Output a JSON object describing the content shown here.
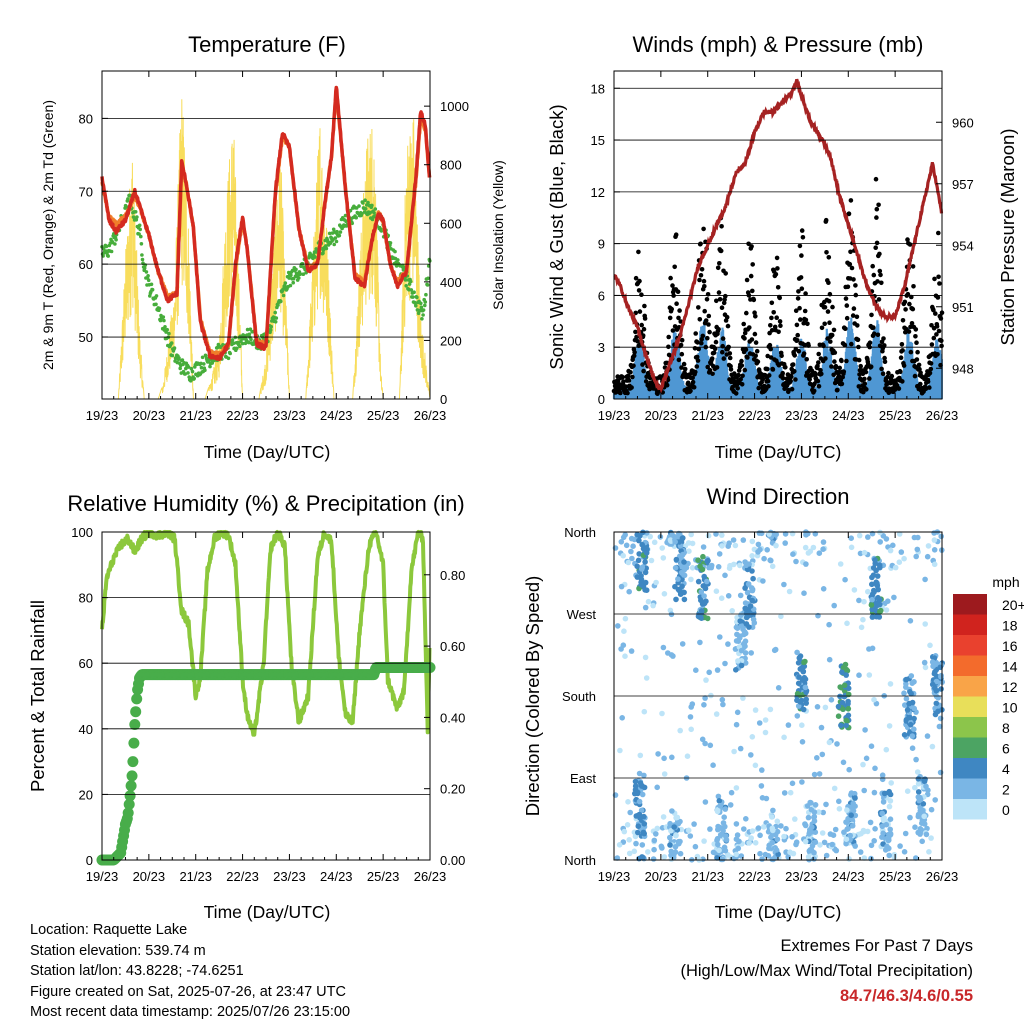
{
  "x_ticks": [
    "19/23",
    "20/23",
    "21/23",
    "22/23",
    "23/23",
    "24/23",
    "25/23",
    "26/23"
  ],
  "colors": {
    "temp_2m": "#d42a20",
    "temp_9m": "#f07d2a",
    "dewpoint": "#46ad3b",
    "solar": "#f8dd5c",
    "gust": "#000000",
    "wind": "#4f97d3",
    "pressure": "#a52222",
    "rh": "#8cc83c",
    "precip": "#48ad4a",
    "extremes": "#c8282a"
  },
  "chart_data": [
    {
      "type": "line",
      "title": "Temperature (F)",
      "xlabel": "Time (Day/UTC)",
      "ylabel": "2m & 9m T (Red, Orange) & 2m Td (Green)",
      "y2label": "Solar Insolation (Yellow)",
      "ylim": [
        41.5,
        86.5
      ],
      "y2lim": [
        0,
        1120
      ],
      "yticks": [
        50,
        60,
        70,
        80
      ],
      "y2ticks": [
        0,
        200,
        400,
        600,
        800,
        1000
      ],
      "grid": "horizontal",
      "series": [
        {
          "name": "2m T",
          "axis": "left",
          "x": [
            19.0,
            19.15,
            19.3,
            19.5,
            19.7,
            19.85,
            20.0,
            20.2,
            20.4,
            20.6,
            20.7,
            20.8,
            20.95,
            21.1,
            21.3,
            21.5,
            21.7,
            21.85,
            22.0,
            22.1,
            22.3,
            22.5,
            22.7,
            22.85,
            23.0,
            23.2,
            23.4,
            23.6,
            23.75,
            23.9,
            24.0,
            24.2,
            24.4,
            24.6,
            24.75,
            24.9,
            25.0,
            25.15,
            25.3,
            25.5,
            25.7,
            25.8,
            25.9,
            26.0
          ],
          "y": [
            72,
            66,
            64.5,
            66,
            70,
            67,
            64,
            59,
            55,
            56,
            74,
            71,
            65,
            52,
            47.5,
            47,
            49,
            60,
            66.5,
            62,
            49,
            48.5,
            70,
            78,
            76,
            65,
            59,
            60,
            68,
            75,
            84.5,
            70,
            58,
            57,
            63,
            67,
            66,
            60,
            57,
            59,
            72,
            81,
            79,
            71
          ]
        },
        {
          "name": "9m T",
          "axis": "left",
          "x": [
            19.0,
            19.15,
            19.3,
            19.5,
            19.7,
            19.85,
            20.0,
            20.2,
            20.4,
            20.6,
            20.7,
            20.8,
            20.95,
            21.1,
            21.3,
            21.5,
            21.7,
            21.85,
            22.0,
            22.1,
            22.3,
            22.5,
            22.7,
            22.85,
            23.0,
            23.2,
            23.4,
            23.6,
            23.75,
            23.9,
            24.0,
            24.2,
            24.4,
            24.6,
            24.75,
            24.9,
            25.0,
            25.15,
            25.3,
            25.5,
            25.7,
            25.8,
            25.9,
            26.0
          ],
          "y": [
            71.5,
            66.5,
            65.5,
            66.5,
            69.5,
            67,
            64,
            59,
            55.5,
            56,
            73,
            71,
            65,
            52.5,
            48,
            47.5,
            49,
            59.5,
            66,
            62,
            49.5,
            49,
            69.5,
            77.5,
            76,
            65,
            59.5,
            60,
            68,
            75,
            84,
            70,
            58.5,
            57.5,
            63,
            67,
            66,
            60,
            57.5,
            59,
            71.5,
            80,
            78.5,
            71
          ]
        },
        {
          "name": "2m Td",
          "axis": "left",
          "x": [
            19.0,
            19.15,
            19.3,
            19.5,
            19.6,
            19.8,
            19.9,
            20.0,
            20.15,
            20.3,
            20.5,
            20.7,
            20.9,
            21.1,
            21.3,
            21.5,
            21.7,
            21.85,
            22.0,
            22.2,
            22.4,
            22.6,
            22.8,
            23.0,
            23.2,
            23.4,
            23.6,
            23.8,
            24.0,
            24.2,
            24.4,
            24.6,
            24.8,
            25.0,
            25.15,
            25.3,
            25.5,
            25.7,
            25.85,
            26.0
          ],
          "y": [
            61.5,
            62,
            64,
            67,
            69,
            64.5,
            60,
            57,
            55,
            52,
            48,
            46,
            45,
            46,
            47,
            48,
            48,
            49,
            50,
            50,
            49,
            51,
            55,
            58,
            59,
            60,
            62,
            63,
            64,
            66,
            67,
            68,
            67,
            65,
            62,
            60,
            58,
            55,
            53,
            61
          ]
        },
        {
          "name": "Solar",
          "axis": "right",
          "x": [
            19.0,
            19.2,
            19.35,
            19.5,
            19.65,
            19.8,
            19.9,
            20.0,
            20.2,
            20.3,
            20.4,
            20.55,
            20.7,
            20.85,
            20.95,
            21.0,
            21.2,
            21.35,
            21.5,
            21.65,
            21.8,
            21.95,
            22.0,
            22.2,
            22.35,
            22.5,
            22.65,
            22.8,
            22.95,
            23.0,
            23.2,
            23.35,
            23.5,
            23.65,
            23.8,
            23.95,
            24.0,
            24.2,
            24.35,
            24.5,
            24.65,
            24.8,
            24.95,
            25.0,
            25.2,
            25.35,
            25.5,
            25.65,
            25.8,
            25.9,
            26.0
          ],
          "y": [
            0,
            0,
            0,
            500,
            900,
            250,
            0,
            0,
            0,
            50,
            180,
            400,
            1100,
            600,
            0,
            0,
            0,
            80,
            200,
            700,
            1000,
            300,
            0,
            0,
            0,
            150,
            500,
            900,
            250,
            0,
            0,
            0,
            500,
            1000,
            600,
            0,
            0,
            0,
            0,
            500,
            900,
            1000,
            100,
            0,
            0,
            0,
            900,
            1000,
            300,
            150,
            0
          ]
        }
      ]
    },
    {
      "type": "scatter",
      "title": "Winds (mph) & Pressure (mb)",
      "xlabel": "Time (Day/UTC)",
      "ylabel": "Sonic Wind & Gust (Blue, Black)",
      "y2label": "Station Pressure (Maroon)",
      "ylim": [
        0,
        19
      ],
      "y2lim": [
        946.5,
        962.5
      ],
      "yticks": [
        0,
        3,
        6,
        9,
        12,
        15,
        18
      ],
      "y2ticks": [
        948,
        951,
        954,
        957,
        960
      ],
      "grid": "horizontal",
      "series": [
        {
          "name": "Gust",
          "axis": "left",
          "peak_x": [
            19.55,
            20.3,
            20.9,
            21.3,
            21.9,
            22.45,
            23.0,
            23.55,
            24.05,
            24.6,
            25.3,
            25.9
          ],
          "peak_y": [
            9,
            10,
            11,
            10,
            9,
            8,
            9,
            10,
            11,
            12,
            10,
            9
          ],
          "base": 1.2
        },
        {
          "name": "Wind",
          "axis": "left",
          "peak_x": [
            19.55,
            20.3,
            20.9,
            21.3,
            21.9,
            22.45,
            23.0,
            23.55,
            24.05,
            24.6,
            25.3,
            25.9
          ],
          "peak_y": [
            3,
            3.5,
            4,
            3.5,
            3,
            3,
            3,
            3.5,
            4,
            4,
            3.5,
            3
          ],
          "base": 0.5
        },
        {
          "name": "Pressure",
          "axis": "right",
          "x": [
            19.0,
            19.1,
            19.3,
            19.5,
            19.7,
            19.9,
            20.0,
            20.2,
            20.4,
            20.6,
            20.8,
            21.0,
            21.2,
            21.4,
            21.6,
            21.8,
            22.0,
            22.2,
            22.4,
            22.6,
            22.8,
            22.9,
            23.0,
            23.2,
            23.4,
            23.6,
            23.8,
            24.0,
            24.2,
            24.4,
            24.6,
            24.8,
            25.0,
            25.2,
            25.4,
            25.6,
            25.8,
            26.0
          ],
          "y": [
            952.5,
            952.2,
            951,
            950,
            948.5,
            947.2,
            947,
            948.3,
            949.5,
            951.2,
            953,
            954,
            955,
            956,
            957.5,
            958,
            959.5,
            960.5,
            960.5,
            961,
            961.5,
            962,
            961.3,
            960,
            959.3,
            958.5,
            956.5,
            955,
            953.5,
            952,
            951,
            950.5,
            950.5,
            952,
            954,
            956,
            958,
            955.5
          ]
        }
      ]
    },
    {
      "type": "line",
      "title": "Relative Humidity (%) & Precipitation (in)",
      "xlabel": "Time (Day/UTC)",
      "ylabel": "Percent & Total Rainfall",
      "ylim": [
        0,
        100
      ],
      "y2lim": [
        0,
        0.92
      ],
      "yticks": [
        0,
        20,
        40,
        60,
        80,
        100
      ],
      "y2ticks": [
        0.0,
        0.2,
        0.4,
        0.6,
        0.8
      ],
      "grid": "horizontal",
      "series": [
        {
          "name": "RH",
          "axis": "left",
          "x": [
            19.0,
            19.1,
            19.25,
            19.4,
            19.55,
            19.7,
            19.85,
            20.0,
            20.2,
            20.4,
            20.55,
            20.7,
            20.85,
            21.0,
            21.1,
            21.25,
            21.4,
            21.55,
            21.7,
            21.85,
            22.0,
            22.1,
            22.25,
            22.45,
            22.6,
            22.75,
            22.9,
            23.05,
            23.2,
            23.4,
            23.6,
            23.75,
            23.9,
            24.05,
            24.2,
            24.35,
            24.5,
            24.7,
            24.85,
            25.0,
            25.1,
            25.3,
            25.45,
            25.6,
            25.75,
            25.85,
            25.95,
            26.0
          ],
          "y": [
            70,
            86,
            92,
            96,
            98,
            94,
            98,
            100,
            99,
            100,
            98,
            76,
            72,
            50,
            56,
            88,
            98,
            100,
            99,
            90,
            55,
            44,
            38,
            60,
            95,
            100,
            96,
            58,
            42,
            50,
            92,
            100,
            97,
            62,
            44,
            42,
            70,
            96,
            100,
            90,
            55,
            46,
            52,
            88,
            100,
            98,
            40,
            70
          ]
        },
        {
          "name": "Precip",
          "axis": "right",
          "x": [
            19.0,
            19.25,
            19.4,
            19.5,
            19.55,
            19.6,
            19.65,
            19.7,
            19.75,
            19.8,
            19.85,
            19.9,
            20.0,
            20.5,
            21.0,
            22.0,
            23.0,
            24.0,
            24.5,
            24.8,
            24.85,
            25.0,
            25.5,
            26.0
          ],
          "y": [
            0,
            0,
            0.02,
            0.1,
            0.12,
            0.18,
            0.25,
            0.38,
            0.47,
            0.51,
            0.52,
            0.52,
            0.52,
            0.52,
            0.52,
            0.52,
            0.52,
            0.52,
            0.52,
            0.52,
            0.54,
            0.54,
            0.54,
            0.54
          ]
        }
      ]
    },
    {
      "type": "scatter",
      "title": "Wind Direction",
      "xlabel": "Time (Day/UTC)",
      "ylabel": "Direction (Colored By Speed)",
      "yticks": [
        "North",
        "East",
        "South",
        "West",
        "North"
      ],
      "ylim": [
        0,
        360
      ],
      "grid": "horizontal",
      "colorbar": {
        "title": "mph",
        "labels": [
          "20+",
          "18",
          "16",
          "14",
          "12",
          "10",
          "8",
          "6",
          "4",
          "2",
          "0"
        ],
        "colors": [
          "#9d1a1e",
          "#d0231e",
          "#e9412e",
          "#f36b2c",
          "#f9a448",
          "#e8df5a",
          "#8cc54b",
          "#4ca463",
          "#3f87c2",
          "#7ab6e5",
          "#bde4f8"
        ]
      },
      "clusters": [
        {
          "x": 19.55,
          "dir": 60,
          "speed": 3
        },
        {
          "x": 19.6,
          "dir": 330,
          "speed": 4
        },
        {
          "x": 20.3,
          "dir": 20,
          "speed": 2
        },
        {
          "x": 20.4,
          "dir": 320,
          "speed": 3
        },
        {
          "x": 20.9,
          "dir": 300,
          "speed": 4
        },
        {
          "x": 21.3,
          "dir": 30,
          "speed": 2
        },
        {
          "x": 21.7,
          "dir": 240,
          "speed": 2
        },
        {
          "x": 21.9,
          "dir": 290,
          "speed": 3
        },
        {
          "x": 22.4,
          "dir": 20,
          "speed": 2
        },
        {
          "x": 23.0,
          "dir": 200,
          "speed": 4
        },
        {
          "x": 23.2,
          "dir": 30,
          "speed": 2
        },
        {
          "x": 23.9,
          "dir": 180,
          "speed": 5
        },
        {
          "x": 24.05,
          "dir": 40,
          "speed": 2
        },
        {
          "x": 24.6,
          "dir": 300,
          "speed": 4
        },
        {
          "x": 24.8,
          "dir": 40,
          "speed": 2
        },
        {
          "x": 25.3,
          "dir": 170,
          "speed": 3
        },
        {
          "x": 25.9,
          "dir": 190,
          "speed": 3
        },
        {
          "x": 25.6,
          "dir": 60,
          "speed": 2
        }
      ]
    }
  ],
  "station": {
    "location": "Location: Raquette Lake",
    "elevation": "Station elevation: 539.74 m",
    "latlon": "Station lat/lon: 43.8228; -74.6251",
    "created": "Figure created on Sat, 2025-07-26, at 23:47 UTC",
    "recent": "Most recent data timestamp: 2025/07/26 23:15:00"
  },
  "extremes": {
    "heading": "Extremes For Past 7 Days",
    "subheading": "(High/Low/Max Wind/Total Precipitation)",
    "values": "84.7/46.3/4.6/0.55"
  }
}
